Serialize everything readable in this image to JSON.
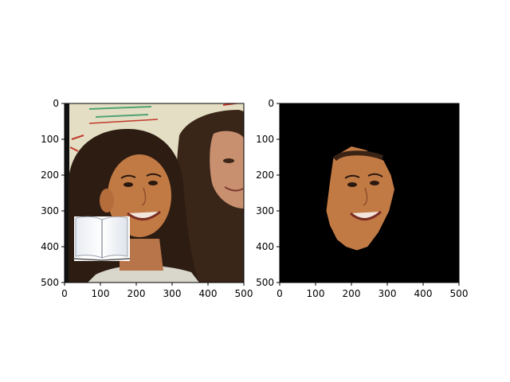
{
  "chart_data": [
    {
      "type": "image",
      "title": "",
      "content": "original photo of two smiling girls with dark hair in front of a whiteboard; an open-book picture is pasted over the lower-left corner",
      "xlim": [
        0,
        500
      ],
      "ylim": [
        500,
        0
      ],
      "xticks": [
        0,
        100,
        200,
        300,
        400,
        500
      ],
      "yticks": [
        0,
        100,
        200,
        300,
        400,
        500
      ],
      "xtick_labels": [
        "0",
        "100",
        "200",
        "300",
        "400",
        "500"
      ],
      "ytick_labels": [
        "0",
        "100",
        "200",
        "300",
        "400",
        "500"
      ],
      "inset": {
        "content": "open book icon",
        "x_range": [
          25,
          180
        ],
        "y_range": [
          310,
          440
        ]
      }
    },
    {
      "type": "image",
      "title": "",
      "content": "segmented face mask on black background; only the face region of the left girl is kept",
      "xlim": [
        0,
        500
      ],
      "ylim": [
        500,
        0
      ],
      "xticks": [
        0,
        100,
        200,
        300,
        400,
        500
      ],
      "yticks": [
        0,
        100,
        200,
        300,
        400,
        500
      ],
      "xtick_labels": [
        "0",
        "100",
        "200",
        "300",
        "400",
        "500"
      ],
      "ytick_labels": [
        "0",
        "100",
        "200",
        "300",
        "400",
        "500"
      ],
      "face_outline": [
        [
          150,
          150
        ],
        [
          200,
          120
        ],
        [
          240,
          130
        ],
        [
          290,
          160
        ],
        [
          310,
          200
        ],
        [
          320,
          240
        ],
        [
          305,
          300
        ],
        [
          275,
          360
        ],
        [
          245,
          400
        ],
        [
          215,
          410
        ],
        [
          185,
          400
        ],
        [
          160,
          380
        ],
        [
          140,
          340
        ],
        [
          130,
          300
        ],
        [
          135,
          260
        ],
        [
          140,
          220
        ]
      ]
    }
  ],
  "colors": {
    "background": "#ffffff",
    "axis": "#000000",
    "mask_background": "#000000",
    "skin": "#c27a45",
    "hair": "#2d1c12",
    "whiteboard": "#e4dfc4",
    "marker_green": "#4fa372",
    "marker_red": "#c0392b"
  }
}
